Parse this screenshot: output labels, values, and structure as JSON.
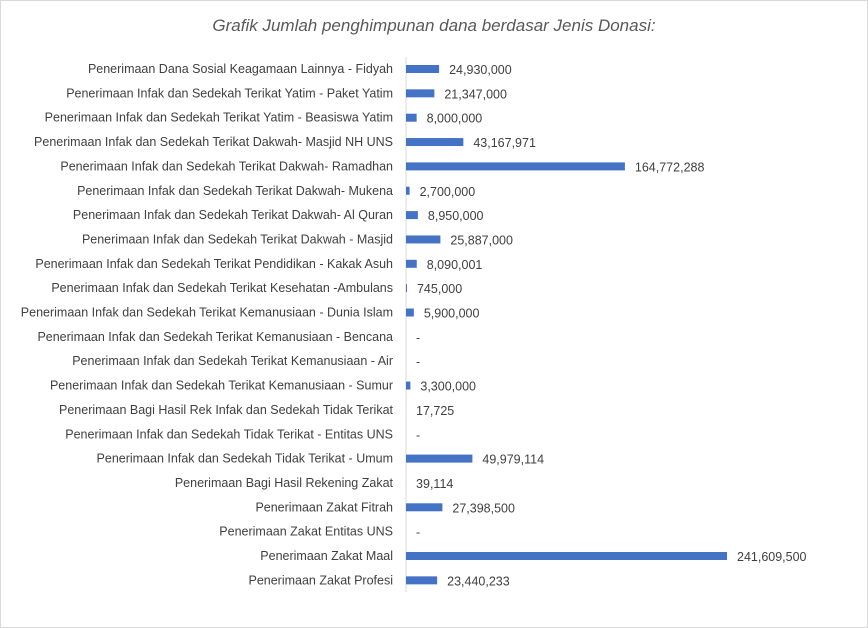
{
  "chart_data": {
    "type": "bar",
    "orientation": "horizontal",
    "title": "Grafik Jumlah penghimpunan dana berdasar Jenis Donasi:",
    "xlabel": "",
    "ylabel": "",
    "grid": false,
    "legend": "none",
    "bar_color": "#4472c4",
    "categories": [
      "Penerimaan Dana Sosial Keagamaan Lainnya - Fidyah",
      "Penerimaan Infak dan Sedekah Terikat Yatim - Paket Yatim",
      "Penerimaan Infak dan Sedekah Terikat Yatim - Beasiswa Yatim",
      "Penerimaan Infak dan Sedekah Terikat  Dakwah- Masjid NH UNS",
      "Penerimaan Infak dan Sedekah Terikat  Dakwah- Ramadhan",
      "Penerimaan Infak dan Sedekah Terikat  Dakwah- Mukena",
      "Penerimaan Infak dan Sedekah Terikat  Dakwah- Al Quran",
      "Penerimaan Infak dan Sedekah Terikat Dakwah - Masjid",
      "Penerimaan Infak dan Sedekah Terikat Pendidikan - Kakak Asuh",
      "Penerimaan Infak dan Sedekah Terikat  Kesehatan -Ambulans",
      "Penerimaan Infak dan Sedekah Terikat Kemanusiaan - Dunia Islam",
      "Penerimaan Infak dan Sedekah Terikat Kemanusiaan - Bencana",
      "Penerimaan Infak dan Sedekah Terikat Kemanusiaan - Air",
      "Penerimaan Infak dan Sedekah Terikat Kemanusiaan  - Sumur",
      "Penerimaan Bagi Hasil Rek Infak dan Sedekah Tidak Terikat",
      "Penerimaan Infak dan Sedekah Tidak Terikat - Entitas UNS",
      "Penerimaan Infak dan Sedekah Tidak Terikat - Umum",
      "Penerimaan Bagi Hasil Rekening Zakat",
      "Penerimaan Zakat Fitrah",
      "Penerimaan Zakat Entitas UNS",
      "Penerimaan Zakat Maal",
      "Penerimaan Zakat Profesi"
    ],
    "values": [
      24930000,
      21347000,
      8000000,
      43167971,
      164772288,
      2700000,
      8950000,
      25887000,
      8090001,
      745000,
      5900000,
      0,
      0,
      3300000,
      17725,
      0,
      49979114,
      39114,
      27398500,
      0,
      241609500,
      23440233
    ],
    "data_labels": [
      "24,930,000",
      "21,347,000",
      "8,000,000",
      "43,167,971",
      "164,772,288",
      "2,700,000",
      "8,950,000",
      "25,887,000",
      "8,090,001",
      "745,000",
      "5,900,000",
      "-",
      "-",
      "3,300,000",
      "17,725",
      "-",
      "49,979,114",
      "39,114",
      "27,398,500",
      "-",
      "241,609,500",
      "23,440,233"
    ],
    "xlim": [
      0,
      241609500
    ]
  }
}
